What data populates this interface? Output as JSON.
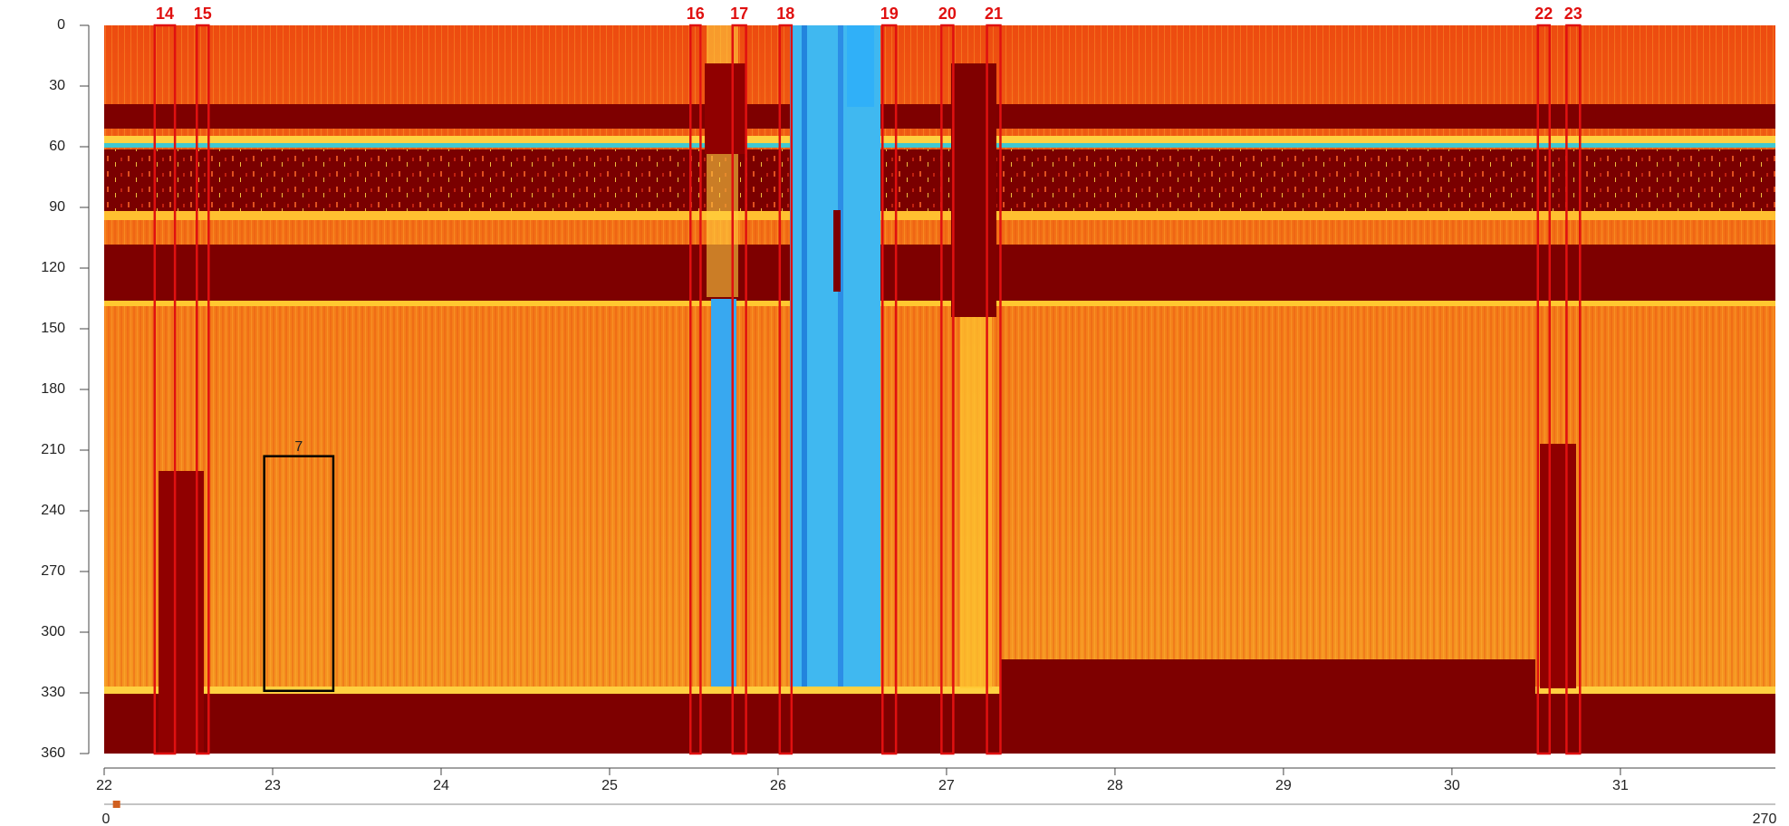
{
  "chart_data": {
    "type": "heatmap",
    "xlim": [
      22,
      31.92
    ],
    "xticks": [
      22,
      23,
      24,
      25,
      26,
      27,
      28,
      29,
      30,
      31
    ],
    "ylim": [
      0,
      360
    ],
    "yticks": [
      0,
      30,
      60,
      90,
      120,
      150,
      180,
      210,
      240,
      270,
      300,
      330,
      360
    ],
    "y_inverted": true,
    "marker_color": "#e01010",
    "markers": [
      {
        "label": "14",
        "x0": 22.3,
        "x1": 22.42
      },
      {
        "label": "15",
        "x0": 22.55,
        "x1": 22.62
      },
      {
        "label": "16",
        "x0": 25.48,
        "x1": 25.54
      },
      {
        "label": "17",
        "x0": 25.73,
        "x1": 25.81
      },
      {
        "label": "18",
        "x0": 26.01,
        "x1": 26.08
      },
      {
        "label": "19",
        "x0": 26.62,
        "x1": 26.7
      },
      {
        "label": "20",
        "x0": 26.97,
        "x1": 27.04
      },
      {
        "label": "21",
        "x0": 27.24,
        "x1": 27.32
      },
      {
        "label": "22",
        "x0": 30.51,
        "x1": 30.58
      },
      {
        "label": "23",
        "x0": 30.68,
        "x1": 30.76
      }
    ],
    "boxes": [
      {
        "label": "7",
        "x0": 22.95,
        "x1": 23.36,
        "y0": 213,
        "y1": 329,
        "color": "#000000"
      }
    ],
    "slider": {
      "min": 0,
      "max": 270,
      "value": 2
    }
  }
}
